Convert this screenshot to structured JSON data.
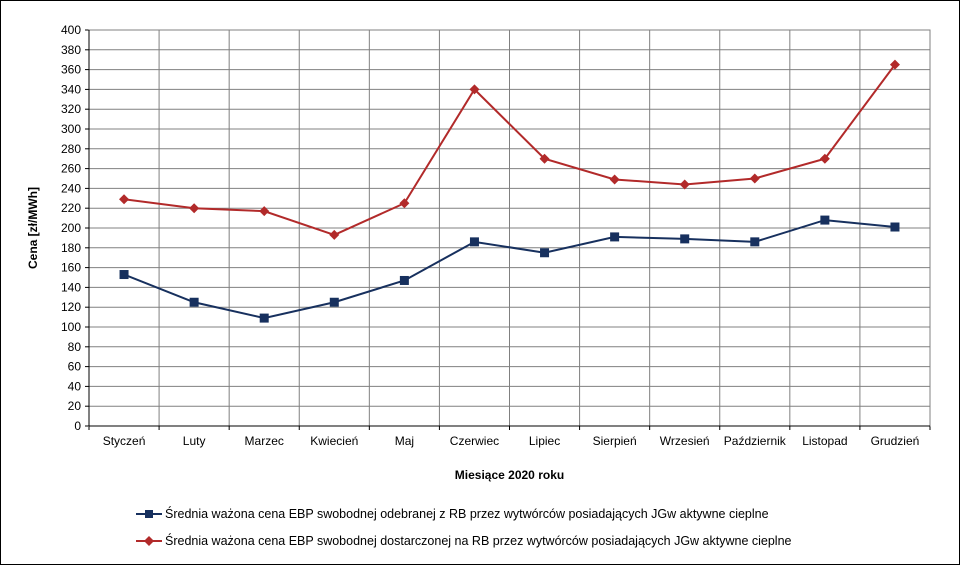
{
  "chart_data": {
    "type": "line",
    "xlabel": "Miesiące 2020  roku",
    "ylabel": "Cena [zł/MWh]",
    "ylim": [
      0,
      400
    ],
    "ytick_step": 20,
    "grid": true,
    "legend_position": "bottom",
    "categories": [
      "Styczeń",
      "Luty",
      "Marzec",
      "Kwiecień",
      "Maj",
      "Czerwiec",
      "Lipiec",
      "Sierpień",
      "Wrzesień",
      "Październik",
      "Listopad",
      "Grudzień"
    ],
    "series": [
      {
        "name": "Średnia ważona cena EBP swobodnej odebranej z RB przez wytwórców posiadających JGw aktywne cieplne",
        "color": "#17305e",
        "marker": "square",
        "values": [
          153,
          125,
          109,
          125,
          147,
          186,
          175,
          191,
          189,
          186,
          208,
          201
        ]
      },
      {
        "name": "Średnia ważona cena EBP swobodnej dostarczonej na RB przez wytwórców posiadających JGw aktywne cieplne",
        "color": "#b22a2a",
        "marker": "diamond",
        "values": [
          229,
          220,
          217,
          193,
          225,
          340,
          270,
          249,
          244,
          250,
          270,
          365
        ]
      }
    ]
  }
}
